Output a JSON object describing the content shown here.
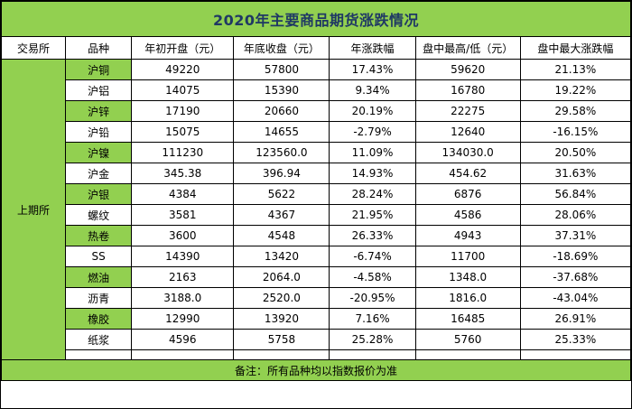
{
  "title": "2020年主要商品期货涨跌情况",
  "headers": [
    "交易所",
    "品种",
    "年初开盘（元）",
    "年底收盘（元）",
    "年涨跌幅",
    "盘中最高/低（元）",
    "盘中最大涨跌幅"
  ],
  "exchange": "上期所",
  "rows": [
    {
      "name": "沪铜",
      "open": "49220",
      "close": "57800",
      "change": "17.43%",
      "hl": "59620",
      "max": "21.13%"
    },
    {
      "name": "沪铝",
      "open": "14075",
      "close": "15390",
      "change": "9.34%",
      "hl": "16780",
      "max": "19.22%"
    },
    {
      "name": "沪锌",
      "open": "17190",
      "close": "20660",
      "change": "20.19%",
      "hl": "22275",
      "max": "29.58%"
    },
    {
      "name": "沪铅",
      "open": "15075",
      "close": "14655",
      "change": "-2.79%",
      "hl": "12640",
      "max": "-16.15%"
    },
    {
      "name": "沪镍",
      "open": "111230",
      "close": "123560.0",
      "change": "11.09%",
      "hl": "134030.0",
      "max": "20.50%"
    },
    {
      "name": "沪金",
      "open": "345.38",
      "close": "396.94",
      "change": "14.93%",
      "hl": "454.62",
      "max": "31.63%"
    },
    {
      "name": "沪银",
      "open": "4384",
      "close": "5622",
      "change": "28.24%",
      "hl": "6876",
      "max": "56.84%"
    },
    {
      "name": "螺纹",
      "open": "3581",
      "close": "4367",
      "change": "21.95%",
      "hl": "4586",
      "max": "28.06%"
    },
    {
      "name": "热卷",
      "open": "3600",
      "close": "4548",
      "change": "26.33%",
      "hl": "4943",
      "max": "37.31%"
    },
    {
      "name": "SS",
      "open": "14390",
      "close": "13420",
      "change": "-6.74%",
      "hl": "11700",
      "max": "-18.69%"
    },
    {
      "name": "燃油",
      "open": "2163",
      "close": "2064.0",
      "change": "-4.58%",
      "hl": "1348.0",
      "max": "-37.68%"
    },
    {
      "name": "沥青",
      "open": "3188.0",
      "close": "2520.0",
      "change": "-20.95%",
      "hl": "1816.0",
      "max": "-43.04%"
    },
    {
      "name": "橡胶",
      "open": "12990",
      "close": "13920",
      "change": "7.16%",
      "hl": "16485",
      "max": "26.91%"
    },
    {
      "name": "纸浆",
      "open": "4596",
      "close": "5758",
      "change": "25.28%",
      "hl": "5760",
      "max": "25.33%"
    }
  ],
  "note": "备注：所有品种均以指数报价为准",
  "colors": {
    "accent_green": "#92d050",
    "title_text": "#1f3864"
  }
}
